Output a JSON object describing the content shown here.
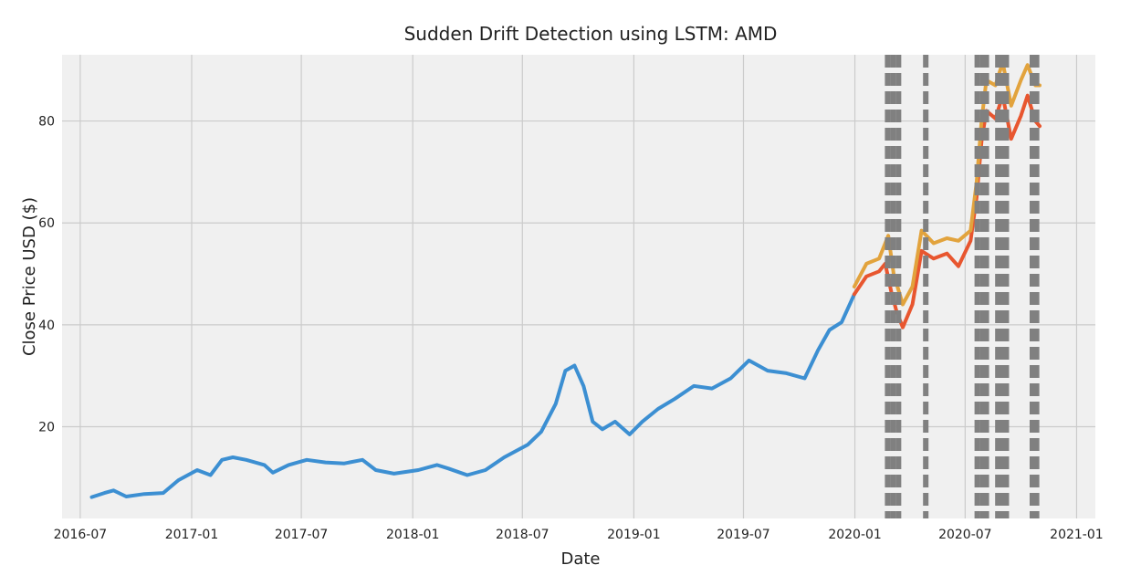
{
  "chart_data": {
    "type": "line",
    "title": "Sudden Drift Detection using LSTM: AMD",
    "xlabel": "Date",
    "ylabel": "Close Price USD ($)",
    "x_range": [
      "2016-06-01",
      "2021-02-01"
    ],
    "ylim": [
      2,
      93
    ],
    "x_ticks": [
      "2016-07",
      "2017-01",
      "2017-07",
      "2018-01",
      "2018-07",
      "2019-01",
      "2019-07",
      "2020-01",
      "2020-07",
      "2021-01"
    ],
    "y_ticks": [
      20,
      40,
      60,
      80
    ],
    "grid": true,
    "colors": {
      "background": "#f0f0f0",
      "grid": "#cbcbcb",
      "train": "#3c8fd2",
      "actual": "#e8562f",
      "predicted": "#e2a33d",
      "drift": "#808080"
    },
    "series": [
      {
        "role": "train",
        "points": [
          [
            "2016-07-20",
            6.2
          ],
          [
            "2016-08-10",
            7.0
          ],
          [
            "2016-08-25",
            7.5
          ],
          [
            "2016-09-15",
            6.3
          ],
          [
            "2016-10-15",
            6.8
          ],
          [
            "2016-11-15",
            7.0
          ],
          [
            "2016-12-10",
            9.5
          ],
          [
            "2017-01-10",
            11.5
          ],
          [
            "2017-02-01",
            10.5
          ],
          [
            "2017-02-20",
            13.5
          ],
          [
            "2017-03-10",
            14.0
          ],
          [
            "2017-04-01",
            13.5
          ],
          [
            "2017-05-01",
            12.5
          ],
          [
            "2017-05-15",
            11.0
          ],
          [
            "2017-06-10",
            12.5
          ],
          [
            "2017-07-10",
            13.5
          ],
          [
            "2017-08-10",
            13.0
          ],
          [
            "2017-09-10",
            12.8
          ],
          [
            "2017-10-10",
            13.5
          ],
          [
            "2017-11-01",
            11.5
          ],
          [
            "2017-12-01",
            10.8
          ],
          [
            "2018-01-10",
            11.5
          ],
          [
            "2018-02-10",
            12.5
          ],
          [
            "2018-03-01",
            11.8
          ],
          [
            "2018-04-01",
            10.5
          ],
          [
            "2018-05-01",
            11.5
          ],
          [
            "2018-06-01",
            14.0
          ],
          [
            "2018-07-10",
            16.5
          ],
          [
            "2018-08-01",
            19.0
          ],
          [
            "2018-08-25",
            24.5
          ],
          [
            "2018-09-10",
            31.0
          ],
          [
            "2018-09-25",
            32.0
          ],
          [
            "2018-10-10",
            28.0
          ],
          [
            "2018-10-25",
            21.0
          ],
          [
            "2018-11-10",
            19.5
          ],
          [
            "2018-12-01",
            21.0
          ],
          [
            "2018-12-25",
            18.5
          ],
          [
            "2019-01-15",
            21.0
          ],
          [
            "2019-02-10",
            23.5
          ],
          [
            "2019-03-10",
            25.5
          ],
          [
            "2019-04-10",
            28.0
          ],
          [
            "2019-05-10",
            27.5
          ],
          [
            "2019-06-10",
            29.5
          ],
          [
            "2019-07-10",
            33.0
          ],
          [
            "2019-08-10",
            31.0
          ],
          [
            "2019-09-10",
            30.5
          ],
          [
            "2019-10-10",
            29.5
          ],
          [
            "2019-11-01",
            35.0
          ],
          [
            "2019-11-20",
            39.0
          ],
          [
            "2019-12-10",
            40.5
          ],
          [
            "2019-12-31",
            46.0
          ]
        ]
      },
      {
        "role": "actual",
        "points": [
          [
            "2019-12-31",
            46.0
          ],
          [
            "2020-01-20",
            49.5
          ],
          [
            "2020-02-10",
            50.5
          ],
          [
            "2020-02-20",
            52.0
          ],
          [
            "2020-03-01",
            46.5
          ],
          [
            "2020-03-10",
            42.5
          ],
          [
            "2020-03-20",
            39.5
          ],
          [
            "2020-04-05",
            44.0
          ],
          [
            "2020-04-20",
            54.5
          ],
          [
            "2020-05-10",
            53.0
          ],
          [
            "2020-06-01",
            54.0
          ],
          [
            "2020-06-20",
            51.5
          ],
          [
            "2020-07-10",
            56.5
          ],
          [
            "2020-07-20",
            65.0
          ],
          [
            "2020-07-28",
            76.0
          ],
          [
            "2020-08-05",
            82.0
          ],
          [
            "2020-08-20",
            80.5
          ],
          [
            "2020-09-01",
            85.0
          ],
          [
            "2020-09-15",
            76.5
          ],
          [
            "2020-10-01",
            81.0
          ],
          [
            "2020-10-12",
            85.0
          ],
          [
            "2020-10-25",
            80.0
          ],
          [
            "2020-11-01",
            79.0
          ]
        ]
      },
      {
        "role": "predicted",
        "points": [
          [
            "2019-12-31",
            47.5
          ],
          [
            "2020-01-20",
            52.0
          ],
          [
            "2020-02-10",
            53.0
          ],
          [
            "2020-02-25",
            57.5
          ],
          [
            "2020-03-05",
            50.0
          ],
          [
            "2020-03-20",
            44.0
          ],
          [
            "2020-04-05",
            47.5
          ],
          [
            "2020-04-20",
            58.5
          ],
          [
            "2020-05-10",
            56.0
          ],
          [
            "2020-06-01",
            57.0
          ],
          [
            "2020-06-20",
            56.5
          ],
          [
            "2020-07-10",
            58.5
          ],
          [
            "2020-07-20",
            68.0
          ],
          [
            "2020-07-28",
            80.0
          ],
          [
            "2020-08-05",
            88.0
          ],
          [
            "2020-08-20",
            87.0
          ],
          [
            "2020-09-01",
            91.5
          ],
          [
            "2020-09-15",
            83.0
          ],
          [
            "2020-10-01",
            88.0
          ],
          [
            "2020-10-12",
            91.0
          ],
          [
            "2020-10-25",
            87.0
          ],
          [
            "2020-11-01",
            87.0
          ]
        ]
      }
    ],
    "drift_lines": [
      "2020-02-24",
      "2020-03-04",
      "2020-03-13",
      "2020-04-27",
      "2020-07-21",
      "2020-07-30",
      "2020-08-05",
      "2020-08-24",
      "2020-08-31",
      "2020-09-07",
      "2020-10-20",
      "2020-10-27"
    ]
  }
}
